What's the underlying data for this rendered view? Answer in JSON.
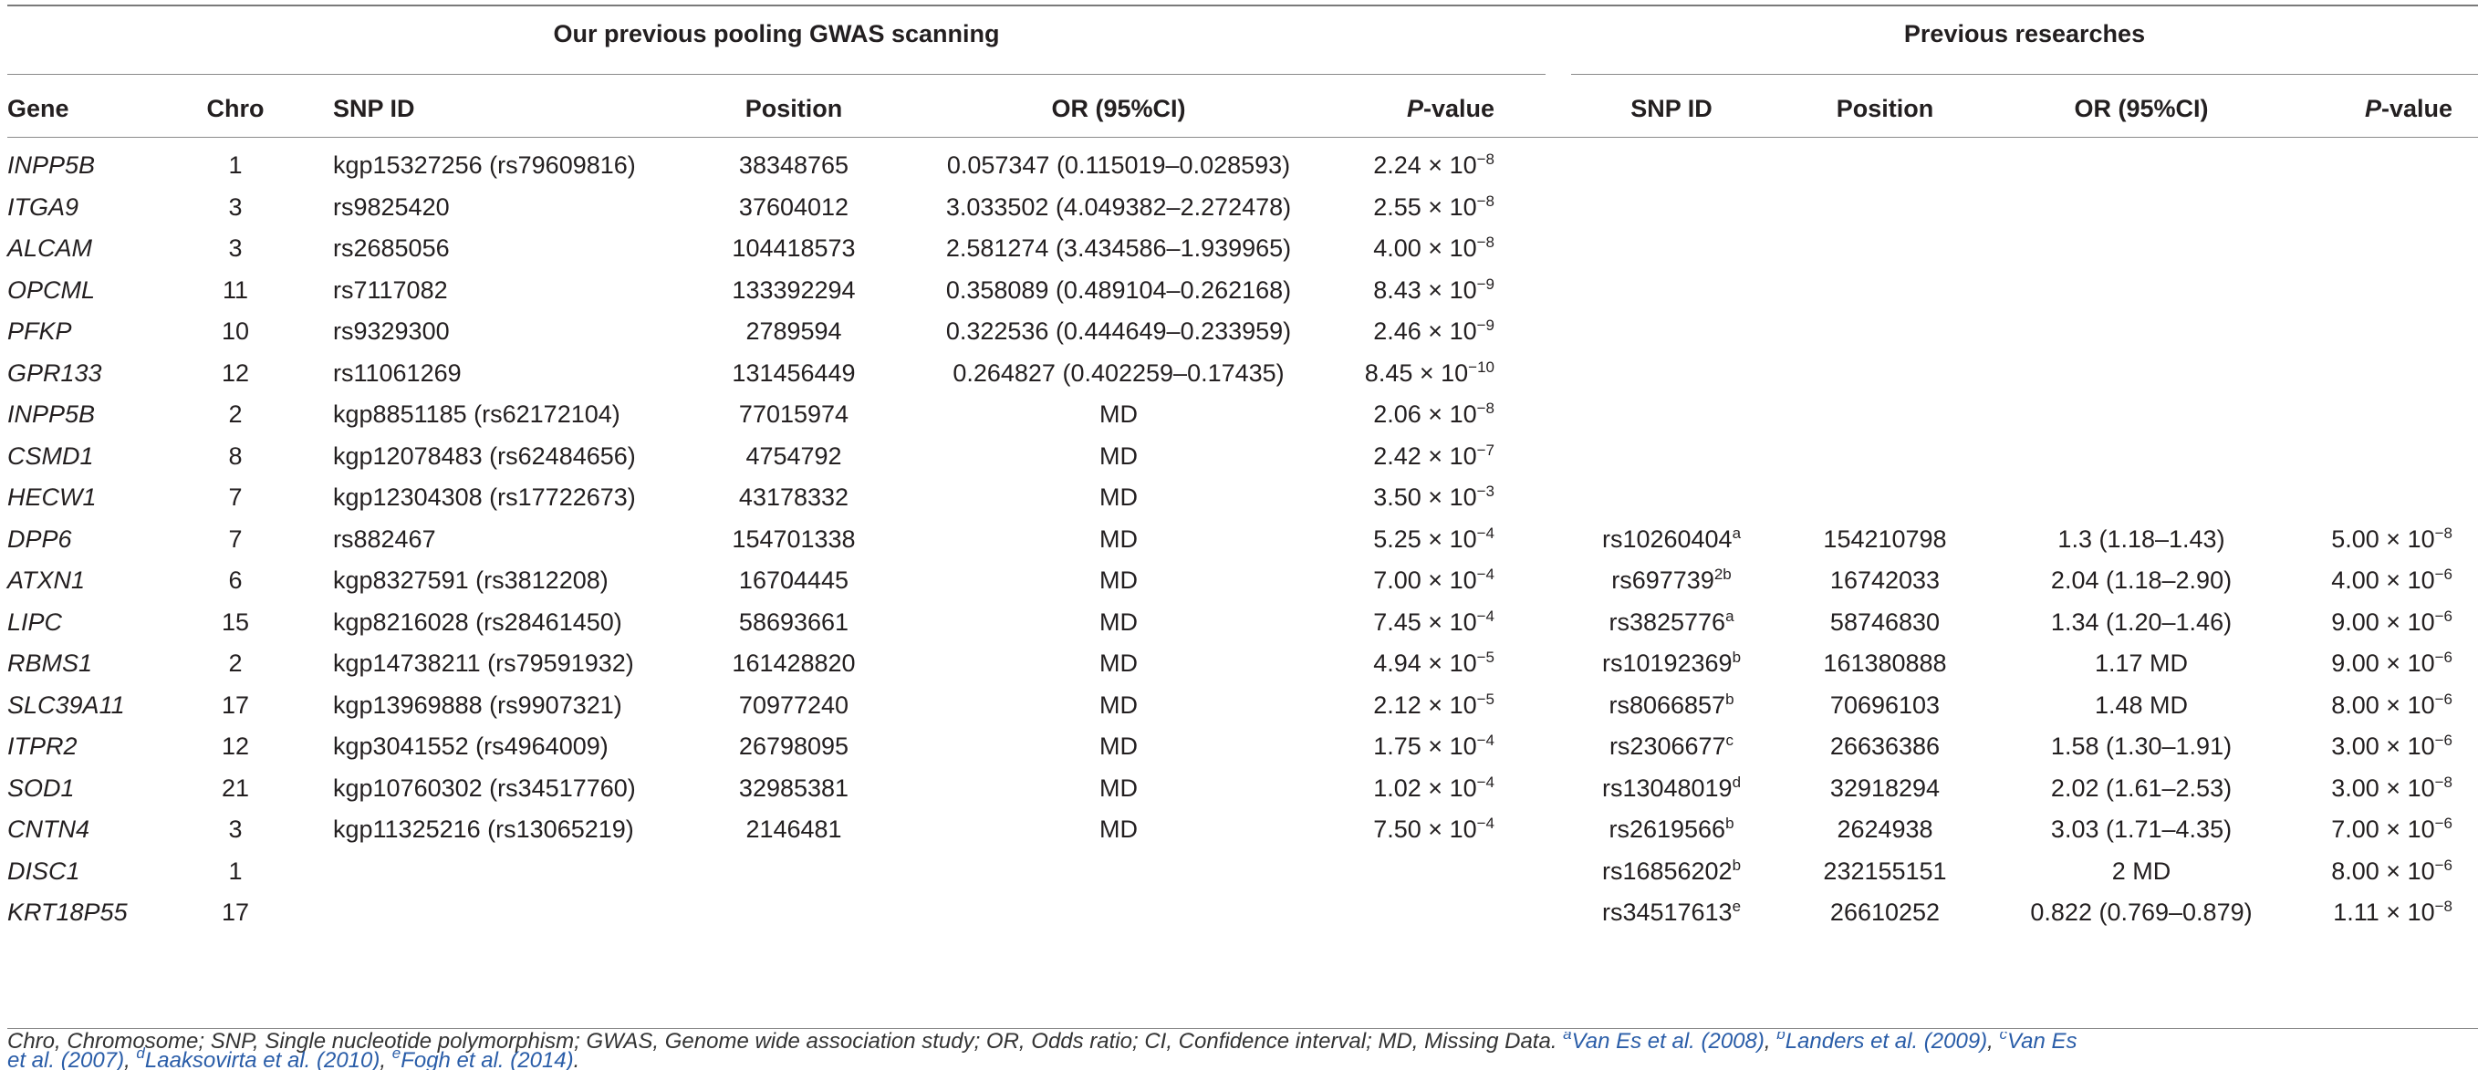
{
  "headings": {
    "pooling": "Our previous pooling GWAS scanning",
    "previous": "Previous researches"
  },
  "columns": {
    "gene": "Gene",
    "chro": "Chro",
    "snp": "SNP ID",
    "position": "Position",
    "or": "OR (95%CI)",
    "pvalue_p": "P",
    "pvalue_rest": "-value",
    "prev_snp": "SNP ID",
    "prev_position": "Position",
    "prev_or": "OR (95%CI)",
    "prev_pvalue_p": "P",
    "prev_pvalue_rest": "-value"
  },
  "rows": [
    {
      "gene": "INPP5B",
      "chro": "1",
      "snp": "kgp15327256 (rs79609816)",
      "position": "38348765",
      "or": "0.057347 (0.115019–0.028593)",
      "p_mant": "2.24 × 10",
      "p_exp": "−8",
      "prev_snp": "",
      "prev_snp_sup": "",
      "prev_position": "",
      "prev_or": "",
      "prev_p_mant": "",
      "prev_p_exp": ""
    },
    {
      "gene": "ITGA9",
      "chro": "3",
      "snp": "rs9825420",
      "position": "37604012",
      "or": "3.033502 (4.049382–2.272478)",
      "p_mant": "2.55 × 10",
      "p_exp": "−8",
      "prev_snp": "",
      "prev_snp_sup": "",
      "prev_position": "",
      "prev_or": "",
      "prev_p_mant": "",
      "prev_p_exp": ""
    },
    {
      "gene": "ALCAM",
      "chro": "3",
      "snp": "rs2685056",
      "position": "104418573",
      "or": "2.581274 (3.434586–1.939965)",
      "p_mant": "4.00 × 10",
      "p_exp": "−8",
      "prev_snp": "",
      "prev_snp_sup": "",
      "prev_position": "",
      "prev_or": "",
      "prev_p_mant": "",
      "prev_p_exp": ""
    },
    {
      "gene": "OPCML",
      "chro": "11",
      "snp": "rs7117082",
      "position": "133392294",
      "or": "0.358089 (0.489104–0.262168)",
      "p_mant": "8.43 × 10",
      "p_exp": "−9",
      "prev_snp": "",
      "prev_snp_sup": "",
      "prev_position": "",
      "prev_or": "",
      "prev_p_mant": "",
      "prev_p_exp": ""
    },
    {
      "gene": "PFKP",
      "chro": "10",
      "snp": "rs9329300",
      "position": "2789594",
      "or": "0.322536 (0.444649–0.233959)",
      "p_mant": "2.46 × 10",
      "p_exp": "−9",
      "prev_snp": "",
      "prev_snp_sup": "",
      "prev_position": "",
      "prev_or": "",
      "prev_p_mant": "",
      "prev_p_exp": ""
    },
    {
      "gene": "GPR133",
      "chro": "12",
      "snp": "rs11061269",
      "position": "131456449",
      "or": "0.264827 (0.402259–0.17435)",
      "p_mant": "8.45 × 10",
      "p_exp": "−10",
      "prev_snp": "",
      "prev_snp_sup": "",
      "prev_position": "",
      "prev_or": "",
      "prev_p_mant": "",
      "prev_p_exp": ""
    },
    {
      "gene": "INPP5B",
      "chro": "2",
      "snp": "kgp8851185 (rs62172104)",
      "position": "77015974",
      "or": "MD",
      "p_mant": "2.06 × 10",
      "p_exp": "−8",
      "prev_snp": "",
      "prev_snp_sup": "",
      "prev_position": "",
      "prev_or": "",
      "prev_p_mant": "",
      "prev_p_exp": ""
    },
    {
      "gene": "CSMD1",
      "chro": "8",
      "snp": "kgp12078483 (rs62484656)",
      "position": "4754792",
      "or": "MD",
      "p_mant": "2.42 × 10",
      "p_exp": "−7",
      "prev_snp": "",
      "prev_snp_sup": "",
      "prev_position": "",
      "prev_or": "",
      "prev_p_mant": "",
      "prev_p_exp": ""
    },
    {
      "gene": "HECW1",
      "chro": "7",
      "snp": "kgp12304308 (rs17722673)",
      "position": "43178332",
      "or": "MD",
      "p_mant": "3.50 × 10",
      "p_exp": "−3",
      "prev_snp": "",
      "prev_snp_sup": "",
      "prev_position": "",
      "prev_or": "",
      "prev_p_mant": "",
      "prev_p_exp": ""
    },
    {
      "gene": "DPP6",
      "chro": "7",
      "snp": "rs882467",
      "position": "154701338",
      "or": "MD",
      "p_mant": "5.25 × 10",
      "p_exp": "−4",
      "prev_snp": "rs10260404",
      "prev_snp_sup": "a",
      "prev_position": "154210798",
      "prev_or": "1.3 (1.18–1.43)",
      "prev_p_mant": "5.00 × 10",
      "prev_p_exp": "−8"
    },
    {
      "gene": "ATXN1",
      "chro": "6",
      "snp": "kgp8327591 (rs3812208)",
      "position": "16704445",
      "or": "MD",
      "p_mant": "7.00 × 10",
      "p_exp": "−4",
      "prev_snp": "rs697739",
      "prev_snp_sup": "2b",
      "prev_position": "16742033",
      "prev_or": "2.04 (1.18–2.90)",
      "prev_p_mant": "4.00 × 10",
      "prev_p_exp": "−6"
    },
    {
      "gene": "LIPC",
      "chro": "15",
      "snp": "kgp8216028 (rs28461450)",
      "position": "58693661",
      "or": "MD",
      "p_mant": "7.45 × 10",
      "p_exp": "−4",
      "prev_snp": "rs3825776",
      "prev_snp_sup": "a",
      "prev_position": "58746830",
      "prev_or": "1.34 (1.20–1.46)",
      "prev_p_mant": "9.00 × 10",
      "prev_p_exp": "−6"
    },
    {
      "gene": "RBMS1",
      "chro": "2",
      "snp": "kgp14738211 (rs79591932)",
      "position": "161428820",
      "or": "MD",
      "p_mant": "4.94 × 10",
      "p_exp": "−5",
      "prev_snp": "rs10192369",
      "prev_snp_sup": "b",
      "prev_position": "161380888",
      "prev_or": "1.17 MD",
      "prev_p_mant": "9.00 × 10",
      "prev_p_exp": "−6"
    },
    {
      "gene": "SLC39A11",
      "chro": "17",
      "snp": "kgp13969888 (rs9907321)",
      "position": "70977240",
      "or": "MD",
      "p_mant": "2.12 × 10",
      "p_exp": "−5",
      "prev_snp": "rs8066857",
      "prev_snp_sup": "b",
      "prev_position": "70696103",
      "prev_or": "1.48 MD",
      "prev_p_mant": "8.00 × 10",
      "prev_p_exp": "−6"
    },
    {
      "gene": "ITPR2",
      "chro": "12",
      "snp": "kgp3041552 (rs4964009)",
      "position": "26798095",
      "or": "MD",
      "p_mant": "1.75 × 10",
      "p_exp": "−4",
      "prev_snp": "rs2306677",
      "prev_snp_sup": "c",
      "prev_position": "26636386",
      "prev_or": "1.58 (1.30–1.91)",
      "prev_p_mant": "3.00 × 10",
      "prev_p_exp": "−6"
    },
    {
      "gene": "SOD1",
      "chro": "21",
      "snp": "kgp10760302 (rs34517760)",
      "position": "32985381",
      "or": "MD",
      "p_mant": "1.02 × 10",
      "p_exp": "−4",
      "prev_snp": "rs13048019",
      "prev_snp_sup": "d",
      "prev_position": "32918294",
      "prev_or": "2.02 (1.61–2.53)",
      "prev_p_mant": "3.00 × 10",
      "prev_p_exp": "−8"
    },
    {
      "gene": "CNTN4",
      "chro": "3",
      "snp": "kgp11325216 (rs13065219)",
      "position": "2146481",
      "or": "MD",
      "p_mant": "7.50 × 10",
      "p_exp": "−4",
      "prev_snp": "rs2619566",
      "prev_snp_sup": "b",
      "prev_position": "2624938",
      "prev_or": "3.03 (1.71–4.35)",
      "prev_p_mant": "7.00 × 10",
      "prev_p_exp": "−6"
    },
    {
      "gene": "DISC1",
      "chro": "1",
      "snp": "",
      "position": "",
      "or": "",
      "p_mant": "",
      "p_exp": "",
      "prev_snp": "rs16856202",
      "prev_snp_sup": "b",
      "prev_position": "232155151",
      "prev_or": "2 MD",
      "prev_p_mant": "8.00 × 10",
      "prev_p_exp": "−6"
    },
    {
      "gene": "KRT18P55",
      "chro": "17",
      "snp": "",
      "position": "",
      "or": "",
      "p_mant": "",
      "p_exp": "",
      "prev_snp": "rs34517613",
      "prev_snp_sup": "e",
      "prev_position": "26610252",
      "prev_or": "0.822 (0.769–0.879)",
      "prev_p_mant": "1.11 × 10",
      "prev_p_exp": "−8"
    }
  ],
  "footnote": {
    "line1_text": "Chro, Chromosome; SNP, Single nucleotide polymorphism; GWAS, Genome wide association study; OR, Odds ratio; CI, Confidence interval; MD, Missing Data.",
    "ref_a_sup": "a",
    "ref_a": "Van Es et al. (2008)",
    "ref_b_sup": "b",
    "ref_b": "Landers et al. (2009)",
    "ref_c_sup": "c",
    "ref_c_part1": "Van Es",
    "ref_c_part2": "et al. (2007)",
    "ref_d_sup": "d",
    "ref_d": "Laaksovirta et al. (2010)",
    "ref_e_sup": "e",
    "ref_e": "Fogh et al. (2014)",
    "sep": ", ",
    "end": "."
  }
}
